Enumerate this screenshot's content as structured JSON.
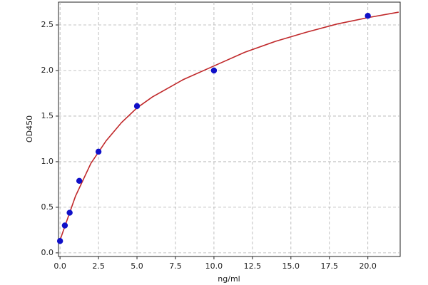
{
  "chart_data": {
    "type": "scatter",
    "x_label": "ng/ml",
    "y_label": "OD450",
    "x": [
      0,
      0.3125,
      0.625,
      1.25,
      2.5,
      5,
      10,
      20
    ],
    "values": [
      0.13,
      0.3,
      0.44,
      0.79,
      1.11,
      1.61,
      2.0,
      2.6
    ],
    "color": "#1010c8",
    "fit": {
      "x": [
        0,
        0.5,
        1,
        2,
        3,
        4,
        5,
        6,
        8,
        10,
        12,
        14,
        16,
        18,
        20,
        22
      ],
      "values": [
        0.14,
        0.38,
        0.62,
        0.98,
        1.23,
        1.43,
        1.59,
        1.71,
        1.9,
        2.05,
        2.2,
        2.32,
        2.42,
        2.51,
        2.58,
        2.64
      ],
      "color": "#c0282a"
    },
    "xlim": [
      -0.1,
      22.1
    ],
    "ylim": [
      -0.04,
      2.75
    ],
    "xticks": [
      {
        "value": 0,
        "label": "0.0"
      },
      2.5,
      {
        "value": 5,
        "label": "5.0"
      },
      7.5,
      {
        "value": 10,
        "label": "10.0"
      },
      12.5,
      {
        "value": 15,
        "label": "15.0"
      },
      17.5,
      {
        "value": 20,
        "label": "20.0"
      }
    ],
    "yticks": [
      {
        "value": 0,
        "label": "0.0"
      },
      0.5,
      {
        "value": 1,
        "label": "1.0"
      },
      1.5,
      {
        "value": 2,
        "label": "2.0"
      },
      2.5
    ],
    "grid": true
  }
}
